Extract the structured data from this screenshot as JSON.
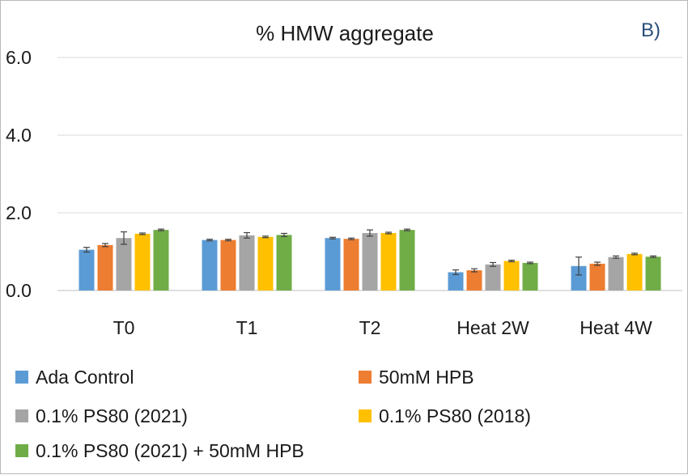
{
  "chart_data": {
    "type": "bar",
    "title": "% HMW aggregate",
    "panel_label": "B)",
    "categories": [
      "T0",
      "T1",
      "T2",
      "Heat 2W",
      "Heat 4W"
    ],
    "ylim": [
      0,
      6
    ],
    "yticks": [
      "0.0",
      "2.0",
      "4.0",
      "6.0"
    ],
    "grid": true,
    "legend_position": "bottom",
    "series": [
      {
        "name": "Ada Control",
        "color": "#5b9bd5",
        "values": [
          1.05,
          1.3,
          1.35,
          0.47,
          0.63
        ],
        "errors": [
          0.06,
          0.02,
          0.02,
          0.06,
          0.23
        ]
      },
      {
        "name": "50mM HPB",
        "color": "#ed7d31",
        "values": [
          1.17,
          1.3,
          1.33,
          0.52,
          0.69
        ],
        "errors": [
          0.04,
          0.02,
          0.02,
          0.04,
          0.04
        ]
      },
      {
        "name": "0.1% PS80 (2021)",
        "color": "#a5a5a5",
        "values": [
          1.35,
          1.42,
          1.48,
          0.67,
          0.86
        ],
        "errors": [
          0.16,
          0.07,
          0.08,
          0.05,
          0.03
        ]
      },
      {
        "name": "0.1% PS80 (2018)",
        "color": "#ffc000",
        "values": [
          1.46,
          1.38,
          1.48,
          0.76,
          0.94
        ],
        "errors": [
          0.02,
          0.02,
          0.02,
          0.02,
          0.02
        ]
      },
      {
        "name": "0.1% PS80 (2021) + 50mM HPB",
        "color": "#70ad47",
        "values": [
          1.56,
          1.43,
          1.56,
          0.71,
          0.87
        ],
        "errors": [
          0.02,
          0.04,
          0.02,
          0.02,
          0.02
        ]
      }
    ]
  }
}
